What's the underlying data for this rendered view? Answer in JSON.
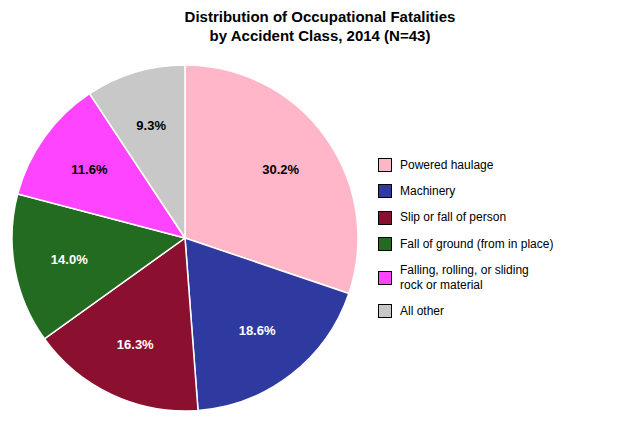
{
  "chart_data": {
    "type": "pie",
    "title": "Distribution of Occupational Fatalities\nby Accident Class, 2014 (N=43)",
    "categories": [
      "Powered haulage",
      "Machinery",
      "Slip or fall of person",
      "Fall of ground (from in place)",
      "Falling, rolling, or sliding\nrock or material",
      "All other"
    ],
    "values": [
      30.2,
      18.6,
      16.3,
      14.0,
      11.6,
      9.3
    ],
    "value_labels": [
      "30.2%",
      "18.6%",
      "16.3%",
      "14.0%",
      "11.6%",
      "9.3%"
    ],
    "colors": [
      "#FFB6C8",
      "#2E3AA0",
      "#8B1030",
      "#236B20",
      "#FF44FF",
      "#C8C8C8"
    ],
    "data_labels": true,
    "legend": "right"
  }
}
